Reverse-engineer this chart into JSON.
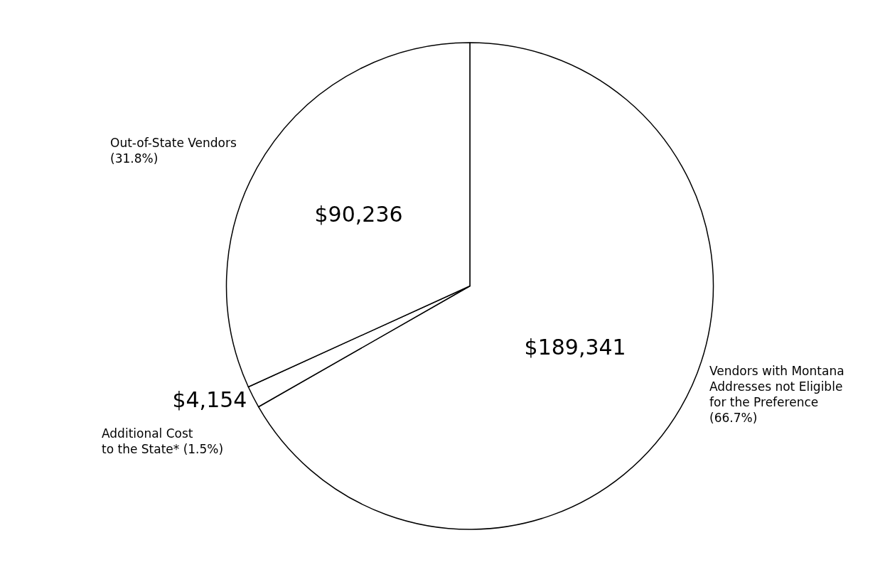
{
  "chart_data": {
    "type": "pie",
    "categories": [
      "Vendors with Montana\nAddresses not Eligible\nfor the Preference\n(66.7%)",
      "Additional Cost\nto the State* (1.5%)",
      "Out-of-State Vendors\n(31.8%)"
    ],
    "values": [
      189341,
      4154,
      90236
    ],
    "value_labels": [
      "$189,341",
      "$4,154",
      "$90,236"
    ],
    "colors": [
      "#ffffff",
      "#ffffff",
      "#ffffff"
    ],
    "legend": false
  }
}
